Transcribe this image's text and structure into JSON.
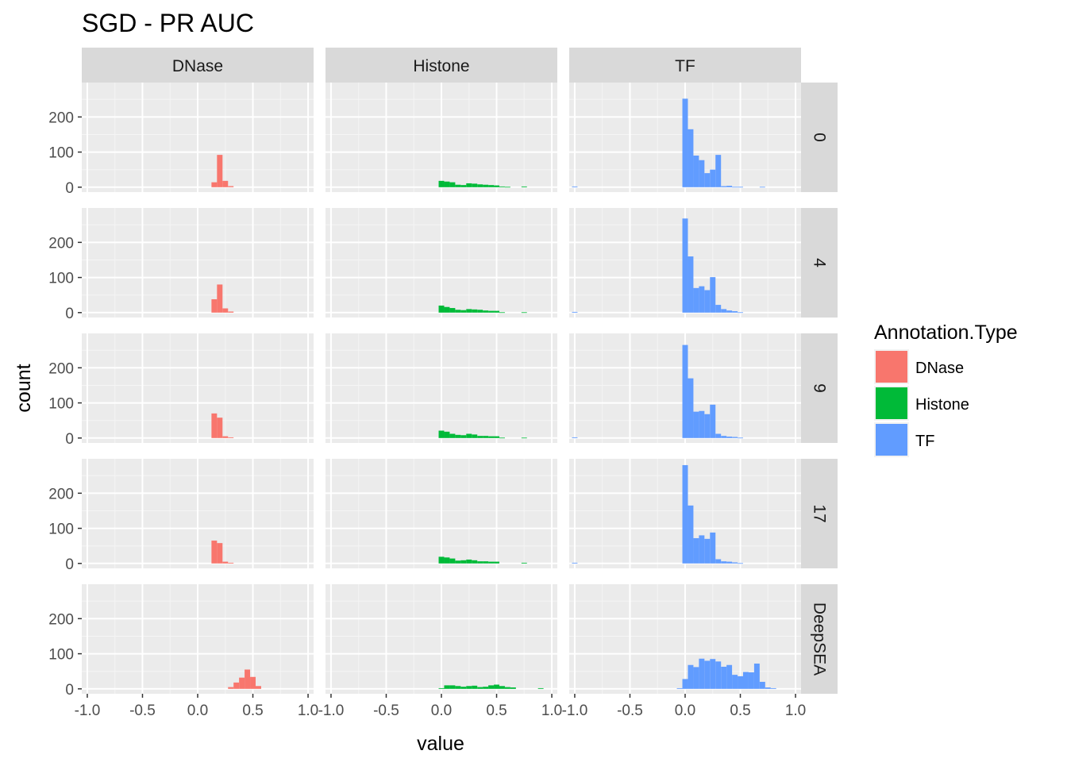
{
  "chart_data": {
    "type": "bar",
    "title": "SGD - PR AUC",
    "xlabel": "value",
    "ylabel": "count",
    "facet_columns": [
      "DNase",
      "Histone",
      "TF"
    ],
    "facet_rows": [
      "0",
      "4",
      "9",
      "17",
      "DeepSEA"
    ],
    "xlim": [
      -1.05,
      1.05
    ],
    "ylim": [
      -14,
      298
    ],
    "x_ticks": [
      -1.0,
      -0.5,
      0.0,
      0.5,
      1.0
    ],
    "x_tick_labels": [
      "-1.0",
      "-0.5",
      "0.0",
      "0.5",
      "1.0"
    ],
    "y_ticks": [
      0,
      100,
      200
    ],
    "y_tick_labels": [
      "0",
      "100",
      "200"
    ],
    "bin_width": 0.05,
    "grid": true,
    "legend": {
      "title": "Annotation.Type",
      "position": "right",
      "entries": [
        {
          "label": "DNase",
          "color": "#F8766D"
        },
        {
          "label": "Histone",
          "color": "#00BA38"
        },
        {
          "label": "TF",
          "color": "#619CFF"
        }
      ]
    },
    "series": [
      {
        "name": "DNase",
        "color": "#F8766D",
        "facets": {
          "0": [
            [
              0.15,
              14
            ],
            [
              0.2,
              92
            ],
            [
              0.25,
              18
            ],
            [
              0.3,
              3
            ]
          ],
          "4": [
            [
              0.15,
              38
            ],
            [
              0.2,
              80
            ],
            [
              0.25,
              12
            ],
            [
              0.3,
              3
            ]
          ],
          "9": [
            [
              0.15,
              70
            ],
            [
              0.2,
              58
            ],
            [
              0.25,
              5
            ],
            [
              0.3,
              2
            ]
          ],
          "17": [
            [
              0.15,
              65
            ],
            [
              0.2,
              58
            ],
            [
              0.25,
              5
            ],
            [
              0.3,
              2
            ]
          ],
          "DeepSEA": [
            [
              0.3,
              5
            ],
            [
              0.35,
              18
            ],
            [
              0.4,
              32
            ],
            [
              0.45,
              55
            ],
            [
              0.5,
              34
            ],
            [
              0.55,
              8
            ]
          ]
        }
      },
      {
        "name": "Histone",
        "color": "#00BA38",
        "facets": {
          "0": [
            [
              0.0,
              18
            ],
            [
              0.05,
              16
            ],
            [
              0.1,
              14
            ],
            [
              0.15,
              7
            ],
            [
              0.2,
              6
            ],
            [
              0.25,
              11
            ],
            [
              0.3,
              10
            ],
            [
              0.35,
              8
            ],
            [
              0.4,
              7
            ],
            [
              0.45,
              6
            ],
            [
              0.5,
              5
            ],
            [
              0.55,
              2
            ],
            [
              0.6,
              1
            ],
            [
              0.75,
              2
            ]
          ],
          "4": [
            [
              0.0,
              20
            ],
            [
              0.05,
              16
            ],
            [
              0.1,
              13
            ],
            [
              0.15,
              8
            ],
            [
              0.2,
              7
            ],
            [
              0.25,
              10
            ],
            [
              0.3,
              9
            ],
            [
              0.35,
              8
            ],
            [
              0.4,
              6
            ],
            [
              0.45,
              5
            ],
            [
              0.5,
              5
            ],
            [
              0.55,
              1
            ],
            [
              0.75,
              1
            ]
          ],
          "9": [
            [
              0.0,
              21
            ],
            [
              0.05,
              18
            ],
            [
              0.1,
              12
            ],
            [
              0.15,
              9
            ],
            [
              0.2,
              8
            ],
            [
              0.25,
              12
            ],
            [
              0.3,
              10
            ],
            [
              0.35,
              6
            ],
            [
              0.4,
              6
            ],
            [
              0.45,
              5
            ],
            [
              0.5,
              5
            ],
            [
              0.55,
              1
            ],
            [
              0.75,
              1
            ]
          ],
          "17": [
            [
              0.0,
              19
            ],
            [
              0.05,
              17
            ],
            [
              0.1,
              14
            ],
            [
              0.15,
              8
            ],
            [
              0.2,
              9
            ],
            [
              0.25,
              11
            ],
            [
              0.3,
              9
            ],
            [
              0.35,
              6
            ],
            [
              0.4,
              6
            ],
            [
              0.45,
              5
            ],
            [
              0.5,
              5
            ],
            [
              0.75,
              2
            ]
          ],
          "DeepSEA": [
            [
              0.0,
              2
            ],
            [
              0.05,
              10
            ],
            [
              0.1,
              10
            ],
            [
              0.15,
              8
            ],
            [
              0.2,
              6
            ],
            [
              0.25,
              8
            ],
            [
              0.3,
              9
            ],
            [
              0.35,
              5
            ],
            [
              0.4,
              6
            ],
            [
              0.45,
              10
            ],
            [
              0.5,
              12
            ],
            [
              0.55,
              8
            ],
            [
              0.6,
              5
            ],
            [
              0.65,
              4
            ],
            [
              0.9,
              2
            ]
          ]
        }
      },
      {
        "name": "TF",
        "color": "#619CFF",
        "facets": {
          "0": [
            [
              -1.0,
              2
            ],
            [
              0.0,
              252
            ],
            [
              0.05,
              165
            ],
            [
              0.1,
              90
            ],
            [
              0.15,
              77
            ],
            [
              0.2,
              40
            ],
            [
              0.25,
              50
            ],
            [
              0.3,
              92
            ],
            [
              0.35,
              3
            ],
            [
              0.4,
              4
            ],
            [
              0.45,
              1
            ],
            [
              0.5,
              1
            ],
            [
              0.55,
              0
            ],
            [
              0.6,
              0
            ],
            [
              0.65,
              0
            ],
            [
              0.7,
              1
            ]
          ],
          "4": [
            [
              -1.0,
              2
            ],
            [
              0.0,
              268
            ],
            [
              0.05,
              160
            ],
            [
              0.1,
              70
            ],
            [
              0.15,
              75
            ],
            [
              0.2,
              64
            ],
            [
              0.25,
              101
            ],
            [
              0.3,
              22
            ],
            [
              0.35,
              10
            ],
            [
              0.4,
              6
            ],
            [
              0.45,
              4
            ],
            [
              0.5,
              1
            ]
          ],
          "9": [
            [
              -1.0,
              2
            ],
            [
              0.0,
              265
            ],
            [
              0.05,
              170
            ],
            [
              0.1,
              75
            ],
            [
              0.15,
              77
            ],
            [
              0.2,
              68
            ],
            [
              0.25,
              95
            ],
            [
              0.3,
              12
            ],
            [
              0.35,
              6
            ],
            [
              0.4,
              4
            ],
            [
              0.45,
              3
            ],
            [
              0.5,
              1
            ]
          ],
          "17": [
            [
              -1.0,
              2
            ],
            [
              0.0,
              280
            ],
            [
              0.05,
              165
            ],
            [
              0.1,
              72
            ],
            [
              0.15,
              80
            ],
            [
              0.2,
              70
            ],
            [
              0.25,
              88
            ],
            [
              0.3,
              12
            ],
            [
              0.35,
              6
            ],
            [
              0.4,
              5
            ],
            [
              0.45,
              3
            ],
            [
              0.5,
              1
            ]
          ],
          "DeepSEA": [
            [
              -0.05,
              2
            ],
            [
              0.0,
              28
            ],
            [
              0.05,
              68
            ],
            [
              0.1,
              62
            ],
            [
              0.15,
              86
            ],
            [
              0.2,
              80
            ],
            [
              0.25,
              85
            ],
            [
              0.3,
              78
            ],
            [
              0.35,
              63
            ],
            [
              0.4,
              68
            ],
            [
              0.45,
              40
            ],
            [
              0.5,
              36
            ],
            [
              0.55,
              48
            ],
            [
              0.6,
              47
            ],
            [
              0.65,
              72
            ],
            [
              0.7,
              20
            ],
            [
              0.75,
              4
            ],
            [
              0.8,
              2
            ]
          ]
        }
      }
    ]
  }
}
